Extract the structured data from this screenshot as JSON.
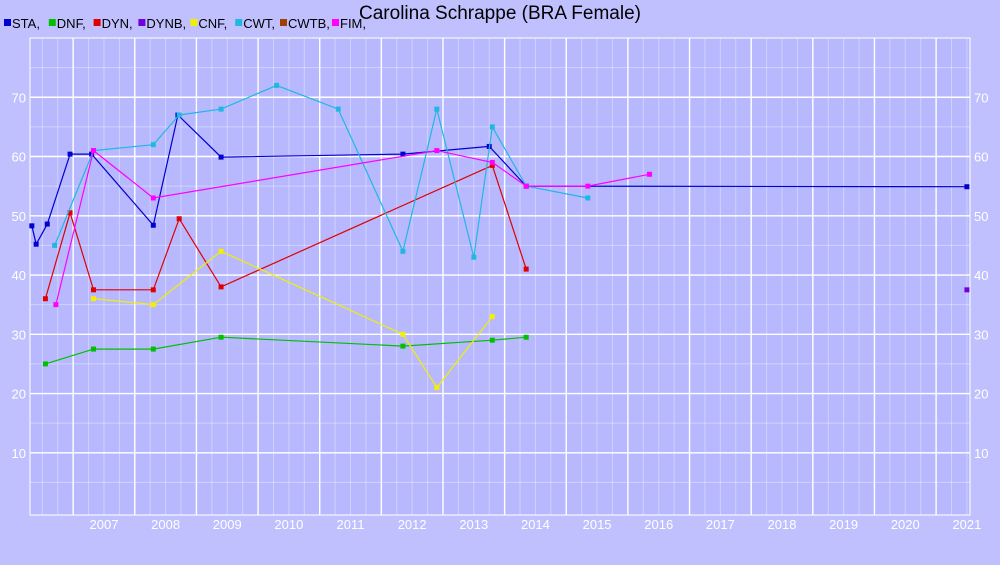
{
  "chart_data": {
    "type": "line",
    "title": "Carolina Schrappe (BRA Female)",
    "xlabel": "",
    "ylabel": "",
    "xlim": [
      2006.3,
      2021.55
    ],
    "ylim": [
      -0.5,
      80
    ],
    "x_ticks": [
      "2007",
      "2008",
      "2009",
      "2010",
      "2011",
      "2012",
      "2013",
      "2014",
      "2015",
      "2016",
      "2017",
      "2018",
      "2019",
      "2020",
      "2021"
    ],
    "y_ticks": [
      10,
      20,
      30,
      40,
      50,
      60,
      70
    ],
    "grid": true,
    "legend_position": "top-left",
    "legend": [
      "STA,",
      "DNF,",
      "DYN,",
      "DYNB,",
      "CNF,",
      "CWT,",
      "CWTB,",
      "FIM,"
    ],
    "colors": {
      "background": "#c0c0ff",
      "plot_background": "#b8b8ff",
      "grid": "#ffffff",
      "STA": "#0000d0",
      "DNF": "#00c000",
      "DYN": "#e00000",
      "DYNB": "#7000e0",
      "CNF": "#f0f000",
      "CWT": "#20b8e0",
      "CWTB": "#a04000",
      "FIM": "#ff00ff"
    },
    "series": [
      {
        "name": "STA",
        "color": "#0000d0",
        "points": [
          [
            2006.33,
            48.3
          ],
          [
            2006.4,
            45.2
          ],
          [
            2006.58,
            48.6
          ],
          [
            2006.95,
            60.4
          ],
          [
            2007.3,
            60.4
          ],
          [
            2008.3,
            48.4
          ],
          [
            2008.7,
            67
          ],
          [
            2009.4,
            59.9
          ],
          [
            2012.35,
            60.4
          ],
          [
            2013.75,
            61.7
          ],
          [
            2014.35,
            55
          ],
          [
            2021.5,
            54.9
          ]
        ]
      },
      {
        "name": "DNF",
        "color": "#00c000",
        "points": [
          [
            2006.55,
            25
          ],
          [
            2007.33,
            27.5
          ],
          [
            2008.3,
            27.5
          ],
          [
            2009.4,
            29.5
          ],
          [
            2012.35,
            28
          ],
          [
            2013.8,
            29
          ],
          [
            2014.35,
            29.5
          ]
        ]
      },
      {
        "name": "DYN",
        "color": "#e00000",
        "points": [
          [
            2006.55,
            36
          ],
          [
            2006.95,
            50.5
          ],
          [
            2007.33,
            37.5
          ],
          [
            2008.3,
            37.5
          ],
          [
            2008.72,
            49.5
          ],
          [
            2009.4,
            38
          ],
          [
            2013.8,
            58.5
          ],
          [
            2014.35,
            41
          ]
        ]
      },
      {
        "name": "DYNB",
        "color": "#7000e0",
        "points": [
          [
            2021.5,
            37.5
          ]
        ]
      },
      {
        "name": "CNF",
        "color": "#f0f000",
        "points": [
          [
            2007.33,
            36
          ],
          [
            2008.3,
            35
          ],
          [
            2009.4,
            44
          ],
          [
            2012.35,
            30
          ],
          [
            2012.9,
            21
          ],
          [
            2013.8,
            33
          ]
        ]
      },
      {
        "name": "CWT",
        "color": "#20b8e0",
        "points": [
          [
            2006.7,
            45
          ],
          [
            2007.33,
            61
          ],
          [
            2008.3,
            62
          ],
          [
            2008.72,
            67
          ],
          [
            2009.4,
            68
          ],
          [
            2010.3,
            72
          ],
          [
            2011.3,
            68
          ],
          [
            2012.35,
            44
          ],
          [
            2012.9,
            68
          ],
          [
            2013.5,
            43
          ],
          [
            2013.8,
            65
          ],
          [
            2014.35,
            55
          ],
          [
            2015.35,
            53
          ]
        ]
      },
      {
        "name": "CWTB",
        "color": "#a04000",
        "points": []
      },
      {
        "name": "FIM",
        "color": "#ff00ff",
        "points": [
          [
            2006.72,
            35
          ],
          [
            2007.33,
            61
          ],
          [
            2008.3,
            53
          ],
          [
            2012.9,
            61
          ],
          [
            2013.8,
            59
          ],
          [
            2014.35,
            55
          ],
          [
            2015.35,
            55
          ],
          [
            2016.35,
            57
          ]
        ]
      }
    ]
  }
}
